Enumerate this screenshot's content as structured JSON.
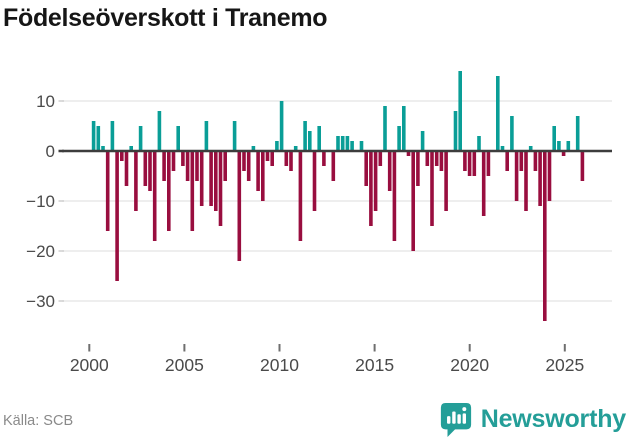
{
  "title": "Födelseöverskott i Tranemo",
  "source": "Källa: SCB",
  "brand": {
    "name": "Newsworthy",
    "color": "#249e98"
  },
  "colors": {
    "positive": "#0a9e97",
    "negative": "#990e3f",
    "zero_axis": "#3d3d3d",
    "grid": "#e8e8e8",
    "tick_label": "#4a4a4a",
    "tick_mark": "#6f6f6f",
    "y_dash": "#cfcfcf"
  },
  "chart_data": {
    "type": "bar",
    "title": "Födelseöverskott i Tranemo",
    "frequency": "quarterly",
    "start": "2000-Q1",
    "end": "2026-Q1",
    "ylim": [
      -36,
      17
    ],
    "grid": "horizontal",
    "y_ticks": [
      {
        "v": 10,
        "label": "10"
      },
      {
        "v": 0,
        "label": "0"
      },
      {
        "v": -10,
        "label": "−10"
      },
      {
        "v": -20,
        "label": "−20"
      },
      {
        "v": -30,
        "label": "−30"
      }
    ],
    "x_ticks": [
      {
        "year": 2000,
        "label": "2000"
      },
      {
        "year": 2005,
        "label": "2005"
      },
      {
        "year": 2010,
        "label": "2010"
      },
      {
        "year": 2015,
        "label": "2015"
      },
      {
        "year": 2020,
        "label": "2020"
      },
      {
        "year": 2025,
        "label": "2025"
      }
    ],
    "values": [
      6,
      5,
      1,
      -16,
      6,
      -26,
      -2,
      -7,
      1,
      -12,
      5,
      -7,
      -8,
      -18,
      8,
      -6,
      -16,
      -4,
      5,
      -3,
      -6,
      -16,
      -6,
      -11,
      6,
      -11,
      -12,
      -15,
      -6,
      0,
      6,
      -22,
      -4,
      -6,
      1,
      -8,
      -10,
      -2,
      -3,
      2,
      10,
      -3,
      -4,
      1,
      -18,
      6,
      4,
      -12,
      5,
      -3,
      0,
      -6,
      3,
      3,
      3,
      2,
      0,
      2,
      -7,
      -15,
      -12,
      -3,
      9,
      -8,
      -18,
      5,
      9,
      -1,
      -20,
      -7,
      4,
      -3,
      -15,
      -3,
      -4,
      -12,
      0,
      8,
      16,
      -4,
      -5,
      -5,
      3,
      -13,
      -5,
      0,
      15,
      1,
      -4,
      7,
      -10,
      -4,
      -12,
      1,
      -4,
      -11,
      -34,
      -10,
      5,
      2,
      -1,
      2,
      0,
      7,
      -6
    ]
  }
}
